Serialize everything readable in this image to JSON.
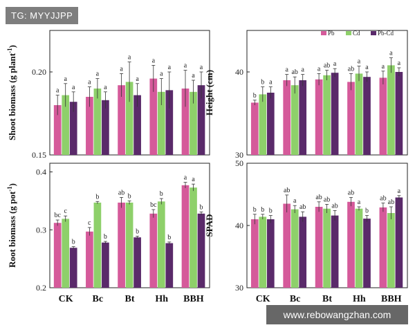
{
  "watermarks": {
    "top": "TG: MYYJJPP",
    "bottom": "www.rebowangzhan.com"
  },
  "colors": {
    "Pb": "#d55a9a",
    "Cd": "#8ed06a",
    "Pb-Cd": "#5a2a6a",
    "axis": "#222222"
  },
  "legend": [
    "Pb",
    "Cd",
    "Pb-Cd"
  ],
  "chart_data": [
    {
      "id": "shoot",
      "type": "bar",
      "ylabel_main": "Shoot biomass (g plant",
      "ylabel_sup": "-1",
      "ylabel_end": ")",
      "ylim": [
        0.15,
        0.225
      ],
      "yticks": [
        0.15,
        0.2
      ],
      "ytick_labels": [
        "0.15",
        "0.20"
      ],
      "categories": [
        "CK",
        "Bc",
        "Bt",
        "Hh",
        "BBH"
      ],
      "series": [
        {
          "name": "Pb",
          "values": [
            0.18,
            0.185,
            0.192,
            0.196,
            0.19
          ],
          "errors": [
            0.006,
            0.006,
            0.007,
            0.008,
            0.011
          ],
          "letters": [
            "a",
            "a",
            "a",
            "a",
            "a"
          ]
        },
        {
          "name": "Cd",
          "values": [
            0.186,
            0.19,
            0.194,
            0.188,
            0.188
          ],
          "errors": [
            0.007,
            0.006,
            0.012,
            0.008,
            0.007
          ],
          "letters": [
            "a",
            "a",
            "a",
            "a",
            "a"
          ]
        },
        {
          "name": "Pb-Cd",
          "values": [
            0.182,
            0.183,
            0.186,
            0.189,
            0.192
          ],
          "errors": [
            0.006,
            0.005,
            0.007,
            0.011,
            0.008
          ],
          "letters": [
            "a",
            "a",
            "a",
            "a",
            "a"
          ]
        }
      ]
    },
    {
      "id": "height",
      "type": "bar",
      "ylabel_main": "Height (cm)",
      "ylim": [
        30,
        45
      ],
      "yticks": [
        30,
        40
      ],
      "ytick_labels": [
        "30",
        "40"
      ],
      "categories": [
        "CK",
        "Bc",
        "Bt",
        "Hh",
        "BBH"
      ],
      "series": [
        {
          "name": "Pb",
          "values": [
            36.3,
            39.0,
            39.1,
            38.8,
            39.3
          ],
          "errors": [
            0.3,
            0.7,
            0.7,
            1.0,
            0.8
          ],
          "letters": [
            "b",
            "a",
            "a",
            "ab",
            "a"
          ]
        },
        {
          "name": "Cd",
          "values": [
            37.3,
            38.4,
            39.6,
            39.8,
            40.8
          ],
          "errors": [
            0.9,
            1.0,
            0.6,
            0.9,
            0.9
          ],
          "letters": [
            "b",
            "ab",
            "ab",
            "a",
            "a"
          ]
        },
        {
          "name": "Pb-Cd",
          "values": [
            37.5,
            39.0,
            39.9,
            39.4,
            40.0
          ],
          "errors": [
            0.7,
            0.7,
            0.5,
            0.6,
            0.5
          ],
          "letters": [
            "a",
            "a",
            "a",
            "a",
            "a"
          ]
        }
      ]
    },
    {
      "id": "root",
      "type": "bar",
      "ylabel_main": "Root biomass (g pot",
      "ylabel_sup": "-1",
      "ylabel_end": ")",
      "ylim": [
        0.2,
        0.415
      ],
      "yticks": [
        0.2,
        0.3,
        0.4
      ],
      "ytick_labels": [
        "0.2",
        "0.3",
        "0.4"
      ],
      "categories": [
        "CK",
        "Bc",
        "Bt",
        "Hh",
        "BBH"
      ],
      "series": [
        {
          "name": "Pb",
          "values": [
            0.312,
            0.297,
            0.347,
            0.328,
            0.377
          ],
          "errors": [
            0.005,
            0.007,
            0.009,
            0.007,
            0.005
          ],
          "letters": [
            "bc",
            "c",
            "ab",
            "bc",
            "a"
          ]
        },
        {
          "name": "Cd",
          "values": [
            0.319,
            0.347,
            0.347,
            0.349,
            0.373
          ],
          "errors": [
            0.005,
            0.002,
            0.003,
            0.005,
            0.006
          ],
          "letters": [
            "c",
            "b",
            "b",
            "b",
            "a"
          ]
        },
        {
          "name": "Pb-Cd",
          "values": [
            0.269,
            0.278,
            0.287,
            0.277,
            0.328
          ],
          "errors": [
            0.002,
            0.002,
            0.002,
            0.002,
            0.003
          ],
          "letters": [
            "b",
            "b",
            "b",
            "b",
            "b"
          ]
        }
      ]
    },
    {
      "id": "spad",
      "type": "bar",
      "ylabel_main": "SPAD",
      "ylim": [
        30,
        50
      ],
      "yticks": [
        30,
        40,
        50
      ],
      "ytick_labels": [
        "30",
        "40",
        "50"
      ],
      "categories": [
        "CK",
        "Bc",
        "Bt",
        "Hh",
        "BBH"
      ],
      "series": [
        {
          "name": "Pb",
          "values": [
            41.0,
            43.5,
            43.0,
            43.8,
            42.9
          ],
          "errors": [
            0.8,
            1.4,
            0.8,
            0.7,
            0.7
          ],
          "letters": [
            "b",
            "ab",
            "ab",
            "ab",
            "ab"
          ]
        },
        {
          "name": "Cd",
          "values": [
            41.4,
            42.6,
            42.7,
            42.7,
            42.0
          ],
          "errors": [
            0.4,
            0.6,
            0.7,
            0.3,
            1.0
          ],
          "letters": [
            "b",
            "a",
            "ab",
            "a",
            "ab"
          ]
        },
        {
          "name": "Pb-Cd",
          "values": [
            41.0,
            41.4,
            41.6,
            41.1,
            44.5
          ],
          "errors": [
            0.6,
            0.8,
            0.8,
            0.5,
            0.3
          ],
          "letters": [
            "b",
            "ab",
            "ab",
            "b",
            "a"
          ]
        }
      ]
    }
  ]
}
